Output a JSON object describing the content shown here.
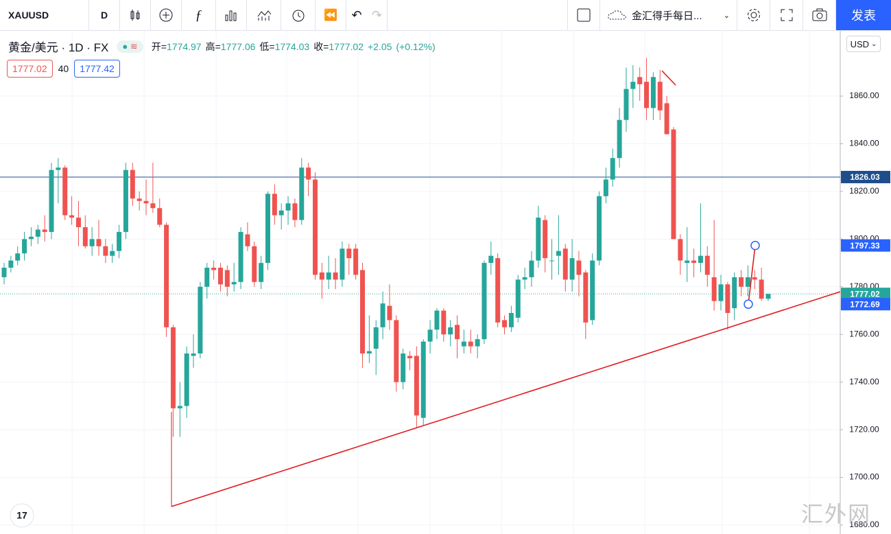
{
  "toolbar": {
    "symbol": "XAUUSD",
    "interval": "D",
    "layout_name": "金汇得手每日...",
    "publish": "发表"
  },
  "legend": {
    "name": "黄金/美元 · 1D · FX",
    "open_label": "开=",
    "open": "1774.97",
    "high_label": "高=",
    "high": "1777.06",
    "low_label": "低=",
    "low": "1774.03",
    "close_label": "收=",
    "close": "1777.02",
    "change": "+2.05",
    "change_pct": "(+0.12%)"
  },
  "badges": {
    "sell": "1777.02",
    "spread": "40",
    "buy": "1777.42"
  },
  "currency": "USD",
  "watermark": "汇外网",
  "chart_data": {
    "type": "candlestick",
    "ylim": [
      1676.26,
      1887.36
    ],
    "yticks": [
      {
        "value": 1680,
        "label": "1680.00"
      },
      {
        "value": 1700,
        "label": "1700.00"
      },
      {
        "value": 1720,
        "label": "1720.00"
      },
      {
        "value": 1740,
        "label": "1740.00"
      },
      {
        "value": 1760,
        "label": "1760.00"
      },
      {
        "value": 1780,
        "label": "1780.00"
      },
      {
        "value": 1800,
        "label": "1800.00"
      },
      {
        "value": 1820,
        "label": "1820.00"
      },
      {
        "value": 1840,
        "label": "1840.00"
      },
      {
        "value": 1860,
        "label": "1860.00"
      }
    ],
    "grid": true,
    "up_color": "#26a69a",
    "down_color": "#ef5350",
    "horizontal_line": 1826.03,
    "drawing_points": [
      1772.69,
      1797.33
    ],
    "open": [
      1784,
      1788,
      1791,
      1794,
      1800,
      1801,
      1804,
      1803,
      1829,
      1830,
      1810,
      1809,
      1805,
      1797,
      1800,
      1797,
      1793,
      1795,
      1803,
      1829,
      1817,
      1816,
      1815,
      1813,
      1806,
      1763,
      1729,
      1730,
      1751,
      1752,
      1780,
      1788,
      1788,
      1787,
      1781,
      1782,
      1802,
      1797,
      1782,
      1790,
      1819,
      1810,
      1812,
      1815,
      1808,
      1830,
      1825,
      1786,
      1783,
      1786,
      1783,
      1796,
      1796,
      1787,
      1752,
      1754,
      1763,
      1772,
      1766,
      1740,
      1751,
      1751,
      1725,
      1757,
      1762,
      1770,
      1760,
      1764,
      1755,
      1757,
      1755,
      1758,
      1790,
      1792,
      1766,
      1763,
      1767,
      1783,
      1784,
      1791,
      1808,
      1791,
      1793,
      1796,
      1783,
      1791,
      1786,
      1766,
      1791,
      1818,
      1825,
      1834,
      1850,
      1863,
      1868,
      1866,
      1855,
      1866,
      1857,
      1846,
      1800,
      1790,
      1791,
      1790,
      1793,
      1784,
      1774,
      1781,
      1771,
      1784,
      1780,
      1784,
      1783,
      1774.97
    ],
    "high": [
      1790,
      1793,
      1797,
      1803,
      1805,
      1806,
      1810,
      1832,
      1834,
      1831,
      1818,
      1816,
      1810,
      1805,
      1808,
      1800,
      1798,
      1806,
      1832,
      1832,
      1820,
      1825,
      1832,
      1817,
      1807,
      1764,
      1740,
      1755,
      1760,
      1782,
      1790,
      1791,
      1790,
      1789,
      1790,
      1805,
      1807,
      1799,
      1793,
      1820,
      1823,
      1815,
      1818,
      1817,
      1834,
      1832,
      1828,
      1790,
      1793,
      1792,
      1799,
      1798,
      1798,
      1790,
      1768,
      1766,
      1778,
      1781,
      1768,
      1754,
      1753,
      1755,
      1758,
      1766,
      1771,
      1771,
      1766,
      1768,
      1762,
      1762,
      1760,
      1791,
      1799,
      1794,
      1768,
      1772,
      1785,
      1788,
      1795,
      1814,
      1810,
      1800,
      1810,
      1798,
      1800,
      1795,
      1787,
      1794,
      1820,
      1830,
      1838,
      1855,
      1872,
      1873,
      1872,
      1876,
      1870,
      1871,
      1860,
      1847,
      1802,
      1805,
      1796,
      1815,
      1797,
      1808,
      1785,
      1782,
      1786,
      1787,
      1789,
      1787,
      1788,
      1777.06
    ],
    "low": [
      1781,
      1786,
      1789,
      1791,
      1797,
      1798,
      1799,
      1800,
      1815,
      1808,
      1806,
      1797,
      1796,
      1793,
      1793,
      1790,
      1790,
      1792,
      1800,
      1814,
      1812,
      1810,
      1811,
      1805,
      1759,
      1717,
      1717,
      1725,
      1746,
      1750,
      1775,
      1783,
      1778,
      1776,
      1778,
      1779,
      1795,
      1780,
      1779,
      1787,
      1806,
      1804,
      1806,
      1805,
      1806,
      1818,
      1783,
      1775,
      1779,
      1779,
      1780,
      1785,
      1783,
      1746,
      1748,
      1743,
      1758,
      1762,
      1736,
      1737,
      1745,
      1721,
      1722,
      1752,
      1758,
      1757,
      1755,
      1750,
      1752,
      1752,
      1750,
      1756,
      1785,
      1763,
      1760,
      1761,
      1765,
      1779,
      1780,
      1788,
      1786,
      1783,
      1785,
      1778,
      1778,
      1776,
      1758,
      1764,
      1789,
      1815,
      1822,
      1830,
      1845,
      1855,
      1858,
      1850,
      1850,
      1850,
      1844,
      1800,
      1785,
      1782,
      1784,
      1786,
      1780,
      1770,
      1770,
      1762,
      1766,
      1776,
      1776,
      1779,
      1774,
      1774.03
    ],
    "close": [
      1788,
      1791,
      1794,
      1800,
      1801,
      1804,
      1803,
      1829,
      1830,
      1810,
      1809,
      1805,
      1797,
      1800,
      1797,
      1793,
      1795,
      1803,
      1829,
      1817,
      1816,
      1815,
      1813,
      1806,
      1763,
      1729,
      1730,
      1752,
      1752,
      1780,
      1788,
      1787,
      1781,
      1780,
      1782,
      1803,
      1797,
      1782,
      1790,
      1819,
      1810,
      1812,
      1815,
      1808,
      1830,
      1825,
      1785,
      1783,
      1786,
      1783,
      1796,
      1792,
      1785,
      1752,
      1753,
      1763,
      1773,
      1766,
      1740,
      1752,
      1750,
      1726,
      1757,
      1762,
      1770,
      1760,
      1763,
      1758,
      1757,
      1755,
      1758,
      1790,
      1793,
      1765,
      1763,
      1769,
      1783,
      1784,
      1791,
      1809,
      1792,
      1791,
      1795,
      1783,
      1792,
      1785,
      1765,
      1791,
      1818,
      1825,
      1834,
      1850,
      1863,
      1866,
      1865,
      1855,
      1868,
      1854,
      1844,
      1800,
      1791,
      1791,
      1790,
      1793,
      1785,
      1774,
      1781,
      1769,
      1784,
      1780,
      1784,
      1783,
      1775,
      1777.02
    ]
  }
}
